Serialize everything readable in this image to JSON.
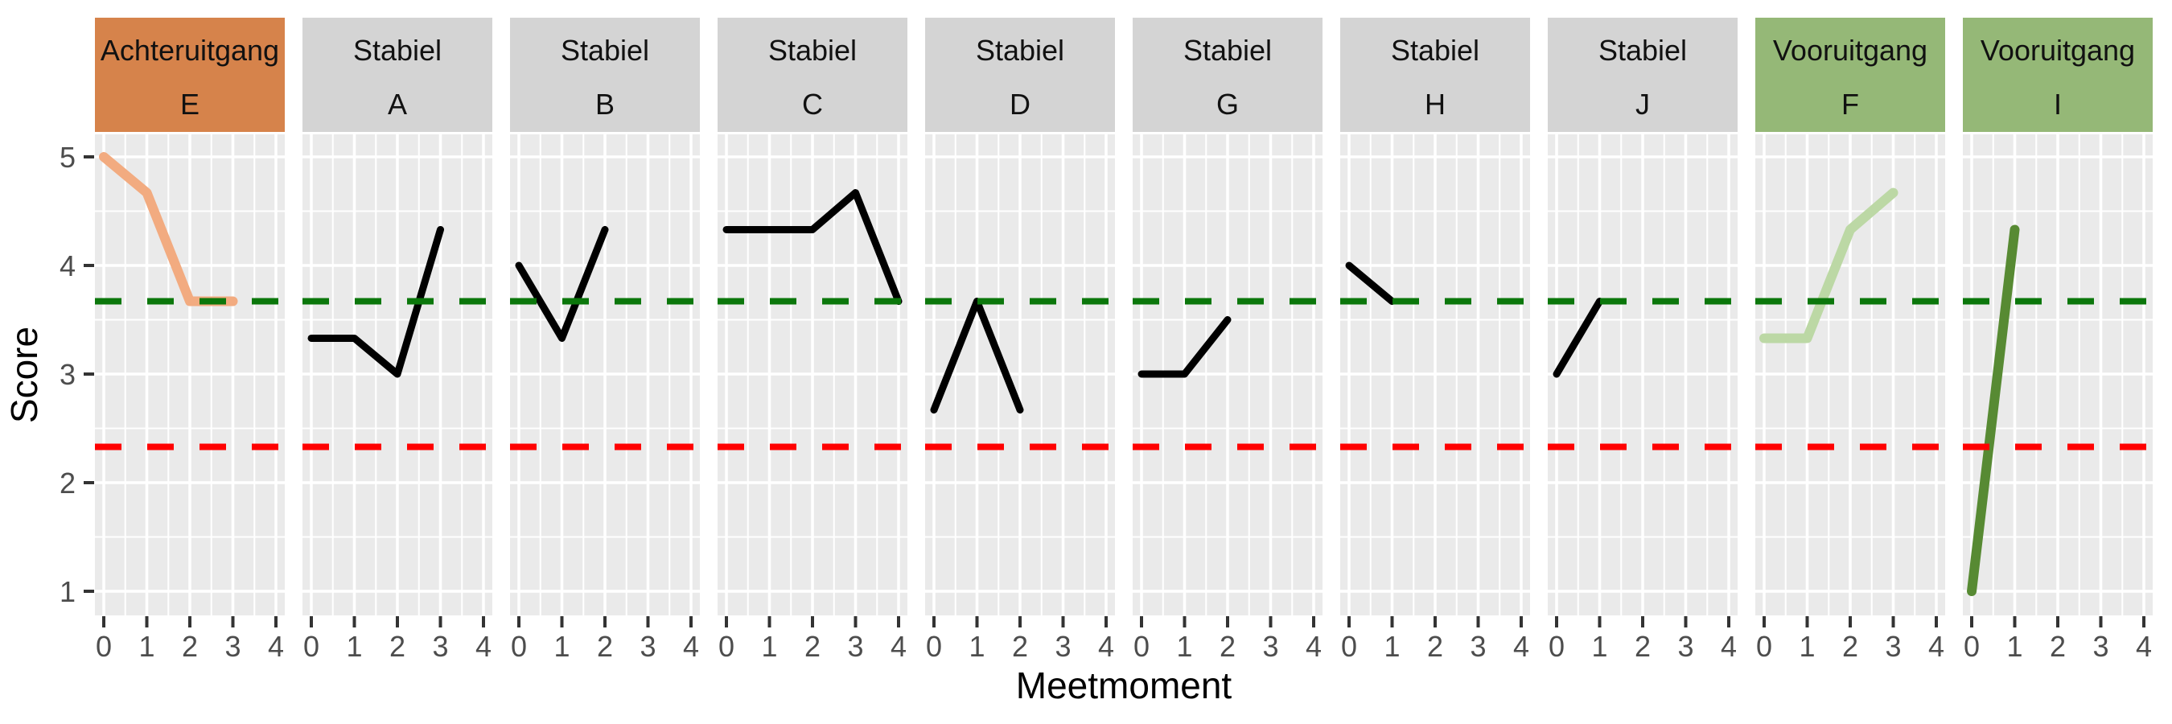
{
  "chart_data": {
    "type": "line",
    "title": "",
    "xlabel": "Meetmoment",
    "ylabel": "Score",
    "x_ticks": [
      "0",
      "1",
      "2",
      "3",
      "4"
    ],
    "y_ticks": [
      "1",
      "2",
      "3",
      "4",
      "5"
    ],
    "xlim": [
      -0.2,
      4.2
    ],
    "ylim": [
      0.78,
      5.22
    ],
    "grid": "on",
    "legend": "none",
    "facet_layout": "single-row, 10 panels, two-line strip header (group + subject id)",
    "reference_lines": [
      {
        "name": "upper-threshold",
        "value": 3.67,
        "color": "#0B770B",
        "style": "dashed"
      },
      {
        "name": "lower-threshold",
        "value": 2.33,
        "color": "#FF0000",
        "style": "dashed"
      }
    ],
    "facets": [
      {
        "group": "Achteruitgang",
        "id": "E",
        "strip_color": "#D6834B",
        "line_color": "#F2AB80",
        "line_width": 12,
        "x": [
          0,
          1,
          2,
          3
        ],
        "y": [
          5.0,
          4.67,
          3.67,
          3.67
        ]
      },
      {
        "group": "Stabiel",
        "id": "A",
        "strip_color": "#D4D4D4",
        "line_color": "#000000",
        "line_width": 9,
        "x": [
          0,
          1,
          2,
          3
        ],
        "y": [
          3.33,
          3.33,
          3.0,
          4.33
        ]
      },
      {
        "group": "Stabiel",
        "id": "B",
        "strip_color": "#D4D4D4",
        "line_color": "#000000",
        "line_width": 9,
        "x": [
          0,
          1,
          2
        ],
        "y": [
          4.0,
          3.33,
          4.33
        ]
      },
      {
        "group": "Stabiel",
        "id": "C",
        "strip_color": "#D4D4D4",
        "line_color": "#000000",
        "line_width": 9,
        "x": [
          0,
          1,
          2,
          3,
          4
        ],
        "y": [
          4.33,
          4.33,
          4.33,
          4.67,
          3.67
        ]
      },
      {
        "group": "Stabiel",
        "id": "D",
        "strip_color": "#D4D4D4",
        "line_color": "#000000",
        "line_width": 9,
        "x": [
          0,
          1,
          2
        ],
        "y": [
          2.67,
          3.67,
          2.67
        ]
      },
      {
        "group": "Stabiel",
        "id": "G",
        "strip_color": "#D4D4D4",
        "line_color": "#000000",
        "line_width": 9,
        "x": [
          0,
          1,
          2
        ],
        "y": [
          3.0,
          3.0,
          3.5
        ]
      },
      {
        "group": "Stabiel",
        "id": "H",
        "strip_color": "#D4D4D4",
        "line_color": "#000000",
        "line_width": 9,
        "x": [
          0,
          1
        ],
        "y": [
          4.0,
          3.67
        ]
      },
      {
        "group": "Stabiel",
        "id": "J",
        "strip_color": "#D4D4D4",
        "line_color": "#000000",
        "line_width": 9,
        "x": [
          0,
          1
        ],
        "y": [
          3.0,
          3.67
        ]
      },
      {
        "group": "Vooruitgang",
        "id": "F",
        "strip_color": "#95B877",
        "line_color": "#BCD8A5",
        "line_width": 12,
        "x": [
          0,
          1,
          2,
          3
        ],
        "y": [
          3.33,
          3.33,
          4.33,
          4.67
        ]
      },
      {
        "group": "Vooruitgang",
        "id": "I",
        "strip_color": "#95B877",
        "line_color": "#578A33",
        "line_width": 12,
        "x": [
          0,
          1
        ],
        "y": [
          1.0,
          4.33
        ]
      }
    ],
    "colors": {
      "panel_background": "#EAEAEA",
      "gridline": "#FFFFFF",
      "strip_achteruitgang": "#D6834B",
      "strip_stabiel": "#D4D4D4",
      "strip_vooruitgang": "#95B877",
      "axis_tick_text": "#4D4D4D",
      "axis_tick_mark": "#333333",
      "axis_title_text": "#000000"
    }
  }
}
